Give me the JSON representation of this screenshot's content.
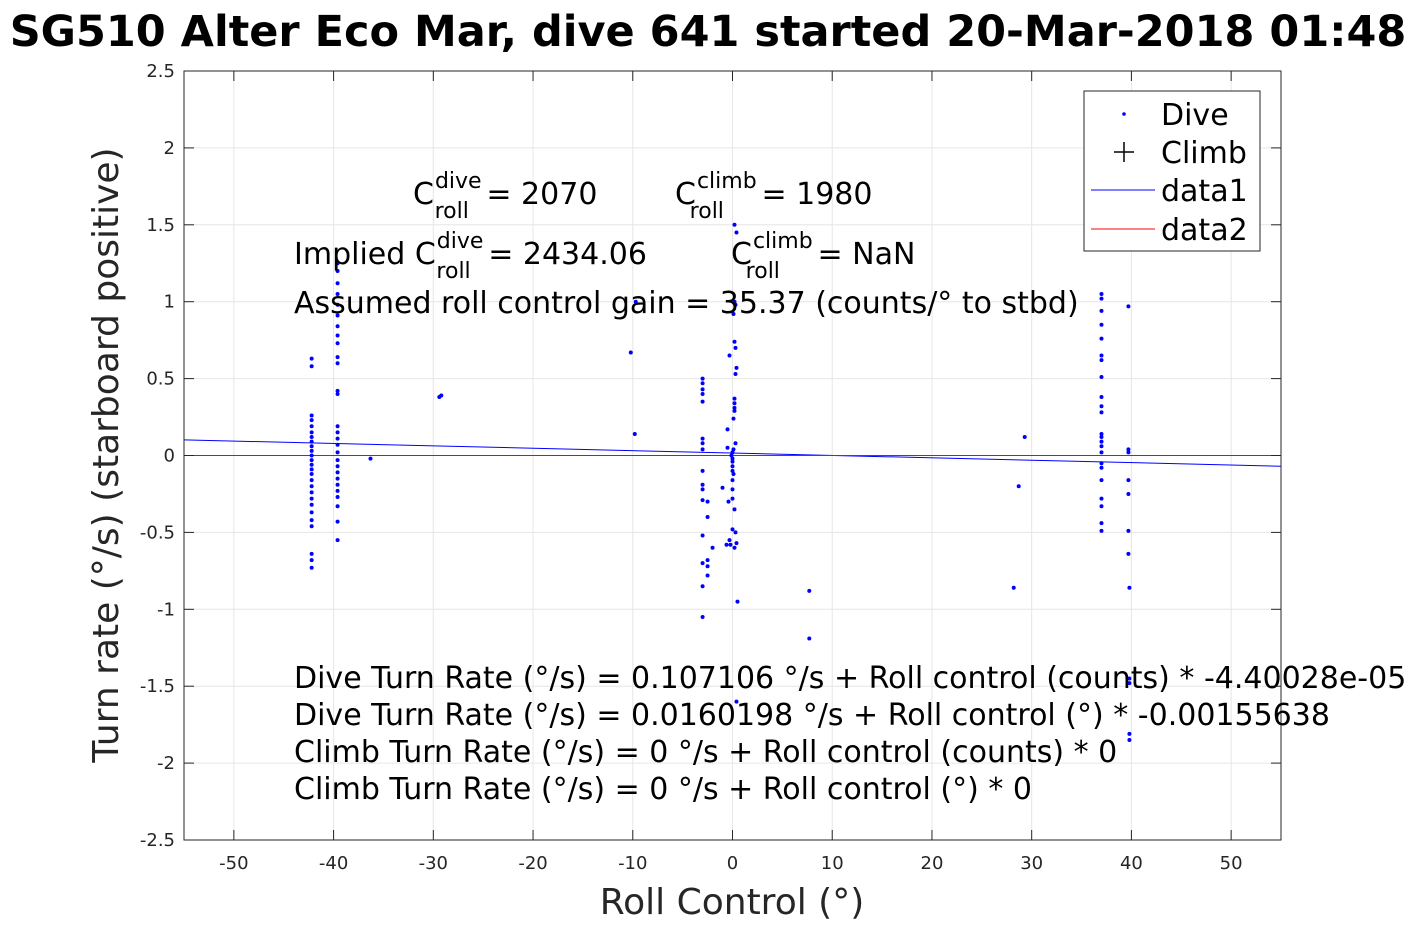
{
  "chart_data": {
    "type": "scatter",
    "title": "SG510 Alter Eco Mar, dive 641 started 20-Mar-2018 01:48",
    "xlabel": "Roll Control (°)",
    "ylabel": "Turn rate (°/s) (starboard positive)",
    "xlim": [
      -55,
      55
    ],
    "ylim": [
      -2.5,
      2.5
    ],
    "xticks": [
      -50,
      -40,
      -30,
      -20,
      -10,
      0,
      10,
      20,
      30,
      40,
      50
    ],
    "yticks": [
      -2.5,
      -2,
      -1.5,
      -1,
      -0.5,
      0,
      0.5,
      1,
      1.5,
      2,
      2.5
    ],
    "xtick_labels": [
      "-50",
      "-40",
      "-30",
      "-20",
      "-10",
      "0",
      "10",
      "20",
      "30",
      "40",
      "50"
    ],
    "ytick_labels": [
      "-2.5",
      "-2",
      "-1.5",
      "-1",
      "-0.5",
      "0",
      "0.5",
      "1",
      "1.5",
      "2",
      "2.5"
    ],
    "grid": true,
    "legend_position": "top-right",
    "legend": [
      {
        "label": "Dive",
        "marker": "dot",
        "color": "#0000ff"
      },
      {
        "label": "Climb",
        "marker": "plus",
        "color": "#000000"
      },
      {
        "label": "data1",
        "marker": "line",
        "color": "#0000ff"
      },
      {
        "label": "data2",
        "marker": "line",
        "color": "#ff0000"
      }
    ],
    "series": [
      {
        "name": "Dive",
        "color": "#0000ff",
        "points": [
          [
            -42.2,
            0.63
          ],
          [
            -42.2,
            0.58
          ],
          [
            -42.2,
            0.26
          ],
          [
            -42.2,
            0.23
          ],
          [
            -42.2,
            0.19
          ],
          [
            -42.2,
            0.15
          ],
          [
            -42.2,
            0.12
          ],
          [
            -42.2,
            0.09
          ],
          [
            -42.2,
            0.06
          ],
          [
            -42.2,
            0.03
          ],
          [
            -42.2,
            0.0
          ],
          [
            -42.2,
            -0.03
          ],
          [
            -42.2,
            -0.06
          ],
          [
            -42.2,
            -0.09
          ],
          [
            -42.2,
            -0.12
          ],
          [
            -42.2,
            -0.16
          ],
          [
            -42.2,
            -0.2
          ],
          [
            -42.2,
            -0.24
          ],
          [
            -42.2,
            -0.28
          ],
          [
            -42.2,
            -0.32
          ],
          [
            -42.2,
            -0.37
          ],
          [
            -42.2,
            -0.42
          ],
          [
            -42.2,
            -0.46
          ],
          [
            -42.2,
            -0.64
          ],
          [
            -42.2,
            -0.68
          ],
          [
            -42.2,
            -0.73
          ],
          [
            -39.6,
            1.25
          ],
          [
            -39.6,
            1.2
          ],
          [
            -39.6,
            1.12
          ],
          [
            -39.6,
            1.05
          ],
          [
            -39.6,
            0.98
          ],
          [
            -39.6,
            0.91
          ],
          [
            -39.6,
            0.84
          ],
          [
            -39.6,
            0.78
          ],
          [
            -39.6,
            0.73
          ],
          [
            -39.6,
            0.64
          ],
          [
            -39.6,
            0.6
          ],
          [
            -39.6,
            0.42
          ],
          [
            -39.6,
            0.4
          ],
          [
            -39.6,
            0.19
          ],
          [
            -39.6,
            0.15
          ],
          [
            -39.6,
            0.11
          ],
          [
            -39.6,
            0.07
          ],
          [
            -39.6,
            0.02
          ],
          [
            -39.6,
            -0.03
          ],
          [
            -39.6,
            -0.07
          ],
          [
            -39.6,
            -0.11
          ],
          [
            -39.6,
            -0.15
          ],
          [
            -39.6,
            -0.19
          ],
          [
            -39.6,
            -0.23
          ],
          [
            -39.6,
            -0.27
          ],
          [
            -39.6,
            -0.33
          ],
          [
            -39.6,
            -0.43
          ],
          [
            -39.6,
            -0.55
          ],
          [
            -36.3,
            -0.02
          ],
          [
            -29.2,
            0.39
          ],
          [
            -29.4,
            0.38
          ],
          [
            -10.2,
            0.67
          ],
          [
            -9.8,
            0.14
          ],
          [
            -9.7,
            1.0
          ],
          [
            -3.0,
            0.5
          ],
          [
            -3.0,
            0.47
          ],
          [
            -3.0,
            0.43
          ],
          [
            -3.0,
            0.4
          ],
          [
            -3.0,
            0.35
          ],
          [
            -3.0,
            0.11
          ],
          [
            -3.0,
            0.08
          ],
          [
            -3.0,
            0.04
          ],
          [
            -3.0,
            -0.1
          ],
          [
            -3.0,
            -0.19
          ],
          [
            -3.0,
            -0.22
          ],
          [
            -3.0,
            -0.29
          ],
          [
            -3.0,
            -0.52
          ],
          [
            -3.0,
            -0.7
          ],
          [
            -3.0,
            -0.85
          ],
          [
            -3.0,
            -1.05
          ],
          [
            -2.5,
            -0.3
          ],
          [
            -2.5,
            -0.4
          ],
          [
            -2.5,
            -0.68
          ],
          [
            -2.5,
            -0.72
          ],
          [
            -2.5,
            -0.78
          ],
          [
            -2.0,
            -0.6
          ],
          [
            -1.0,
            -0.21
          ],
          [
            0.2,
            1.5
          ],
          [
            0.4,
            1.45
          ],
          [
            0.2,
            1.0
          ],
          [
            0.3,
            0.98
          ],
          [
            0.1,
            0.92
          ],
          [
            0.2,
            0.74
          ],
          [
            0.3,
            0.7
          ],
          [
            0.4,
            0.57
          ],
          [
            0.3,
            0.53
          ],
          [
            0.2,
            0.37
          ],
          [
            0.2,
            0.34
          ],
          [
            0.2,
            0.31
          ],
          [
            0.2,
            0.29
          ],
          [
            0.1,
            0.24
          ],
          [
            0.3,
            0.08
          ],
          [
            0.1,
            0.04
          ],
          [
            0.0,
            0.02
          ],
          [
            -0.1,
            0.0
          ],
          [
            0.0,
            -0.02
          ],
          [
            0.0,
            -0.04
          ],
          [
            0.0,
            -0.07
          ],
          [
            0.0,
            -0.1
          ],
          [
            0.1,
            -0.12
          ],
          [
            0.0,
            -0.16
          ],
          [
            0.0,
            -0.22
          ],
          [
            0.0,
            -0.28
          ],
          [
            0.2,
            -0.35
          ],
          [
            0.0,
            -0.48
          ],
          [
            0.3,
            -0.5
          ],
          [
            -0.3,
            -0.55
          ],
          [
            -0.2,
            -0.58
          ],
          [
            0.2,
            -0.6
          ],
          [
            0.4,
            -0.57
          ],
          [
            -0.3,
            0.65
          ],
          [
            -0.5,
            0.17
          ],
          [
            -0.5,
            0.05
          ],
          [
            -0.4,
            -0.3
          ],
          [
            -0.6,
            -0.58
          ],
          [
            0.5,
            -0.95
          ],
          [
            0.4,
            -1.6
          ],
          [
            7.7,
            -0.88
          ],
          [
            7.7,
            -1.19
          ],
          [
            28.2,
            -0.86
          ],
          [
            28.7,
            -0.2
          ],
          [
            29.3,
            0.12
          ],
          [
            37.0,
            1.05
          ],
          [
            37.0,
            1.02
          ],
          [
            37.0,
            0.94
          ],
          [
            37.0,
            0.85
          ],
          [
            37.0,
            0.76
          ],
          [
            37.0,
            0.65
          ],
          [
            37.0,
            0.62
          ],
          [
            37.0,
            0.51
          ],
          [
            37.0,
            0.38
          ],
          [
            37.0,
            0.32
          ],
          [
            37.0,
            0.28
          ],
          [
            37.0,
            0.14
          ],
          [
            37.0,
            0.12
          ],
          [
            37.0,
            0.09
          ],
          [
            37.0,
            0.06
          ],
          [
            37.0,
            0.02
          ],
          [
            37.0,
            -0.05
          ],
          [
            37.0,
            -0.08
          ],
          [
            37.0,
            -0.16
          ],
          [
            37.0,
            -0.28
          ],
          [
            37.0,
            -0.33
          ],
          [
            37.0,
            -0.44
          ],
          [
            37.0,
            -0.49
          ],
          [
            39.7,
            0.97
          ],
          [
            39.7,
            0.04
          ],
          [
            39.7,
            0.02
          ],
          [
            39.7,
            -0.16
          ],
          [
            39.7,
            -0.25
          ],
          [
            39.7,
            -0.49
          ],
          [
            39.7,
            -0.64
          ],
          [
            39.8,
            -0.86
          ],
          [
            39.8,
            -1.45
          ],
          [
            39.8,
            -1.48
          ],
          [
            39.8,
            -1.81
          ],
          [
            39.8,
            -1.85
          ]
        ]
      },
      {
        "name": "Climb",
        "color": "#000000",
        "points": []
      },
      {
        "name": "data1",
        "color": "#0000ff",
        "line": [
          [
            -55,
            0.1016
          ],
          [
            55,
            -0.0696
          ]
        ]
      },
      {
        "name": "data2",
        "color": "#ff0000",
        "line": [
          [
            -55,
            0
          ],
          [
            55,
            0
          ]
        ]
      }
    ],
    "annotations": {
      "c_roll_dive": {
        "prefix": "C",
        "sup": "dive",
        "sub": "roll",
        "value": " = 2070"
      },
      "c_roll_climb": {
        "prefix": "C",
        "sup": "climb",
        "sub": "roll",
        "value": " = 1980"
      },
      "implied_dive": {
        "prefix": "Implied C",
        "sup": "dive",
        "sub": "roll",
        "value": " = 2434.06"
      },
      "implied_climb": {
        "prefix": "C",
        "sup": "climb",
        "sub": "roll",
        "value": " = NaN"
      },
      "gain": "Assumed roll control gain = 35.37 (counts/° to stbd)",
      "equations": [
        "Dive Turn Rate (°/s) = 0.107106 °/s + Roll control (counts) * -4.40028e-05",
        "Dive Turn Rate (°/s) = 0.0160198 °/s + Roll control (°) * -0.00155638",
        "Climb Turn Rate (°/s) = 0 °/s + Roll control (counts) * 0",
        "Climb Turn Rate (°/s) = 0 °/s + Roll control (°) * 0"
      ]
    }
  }
}
